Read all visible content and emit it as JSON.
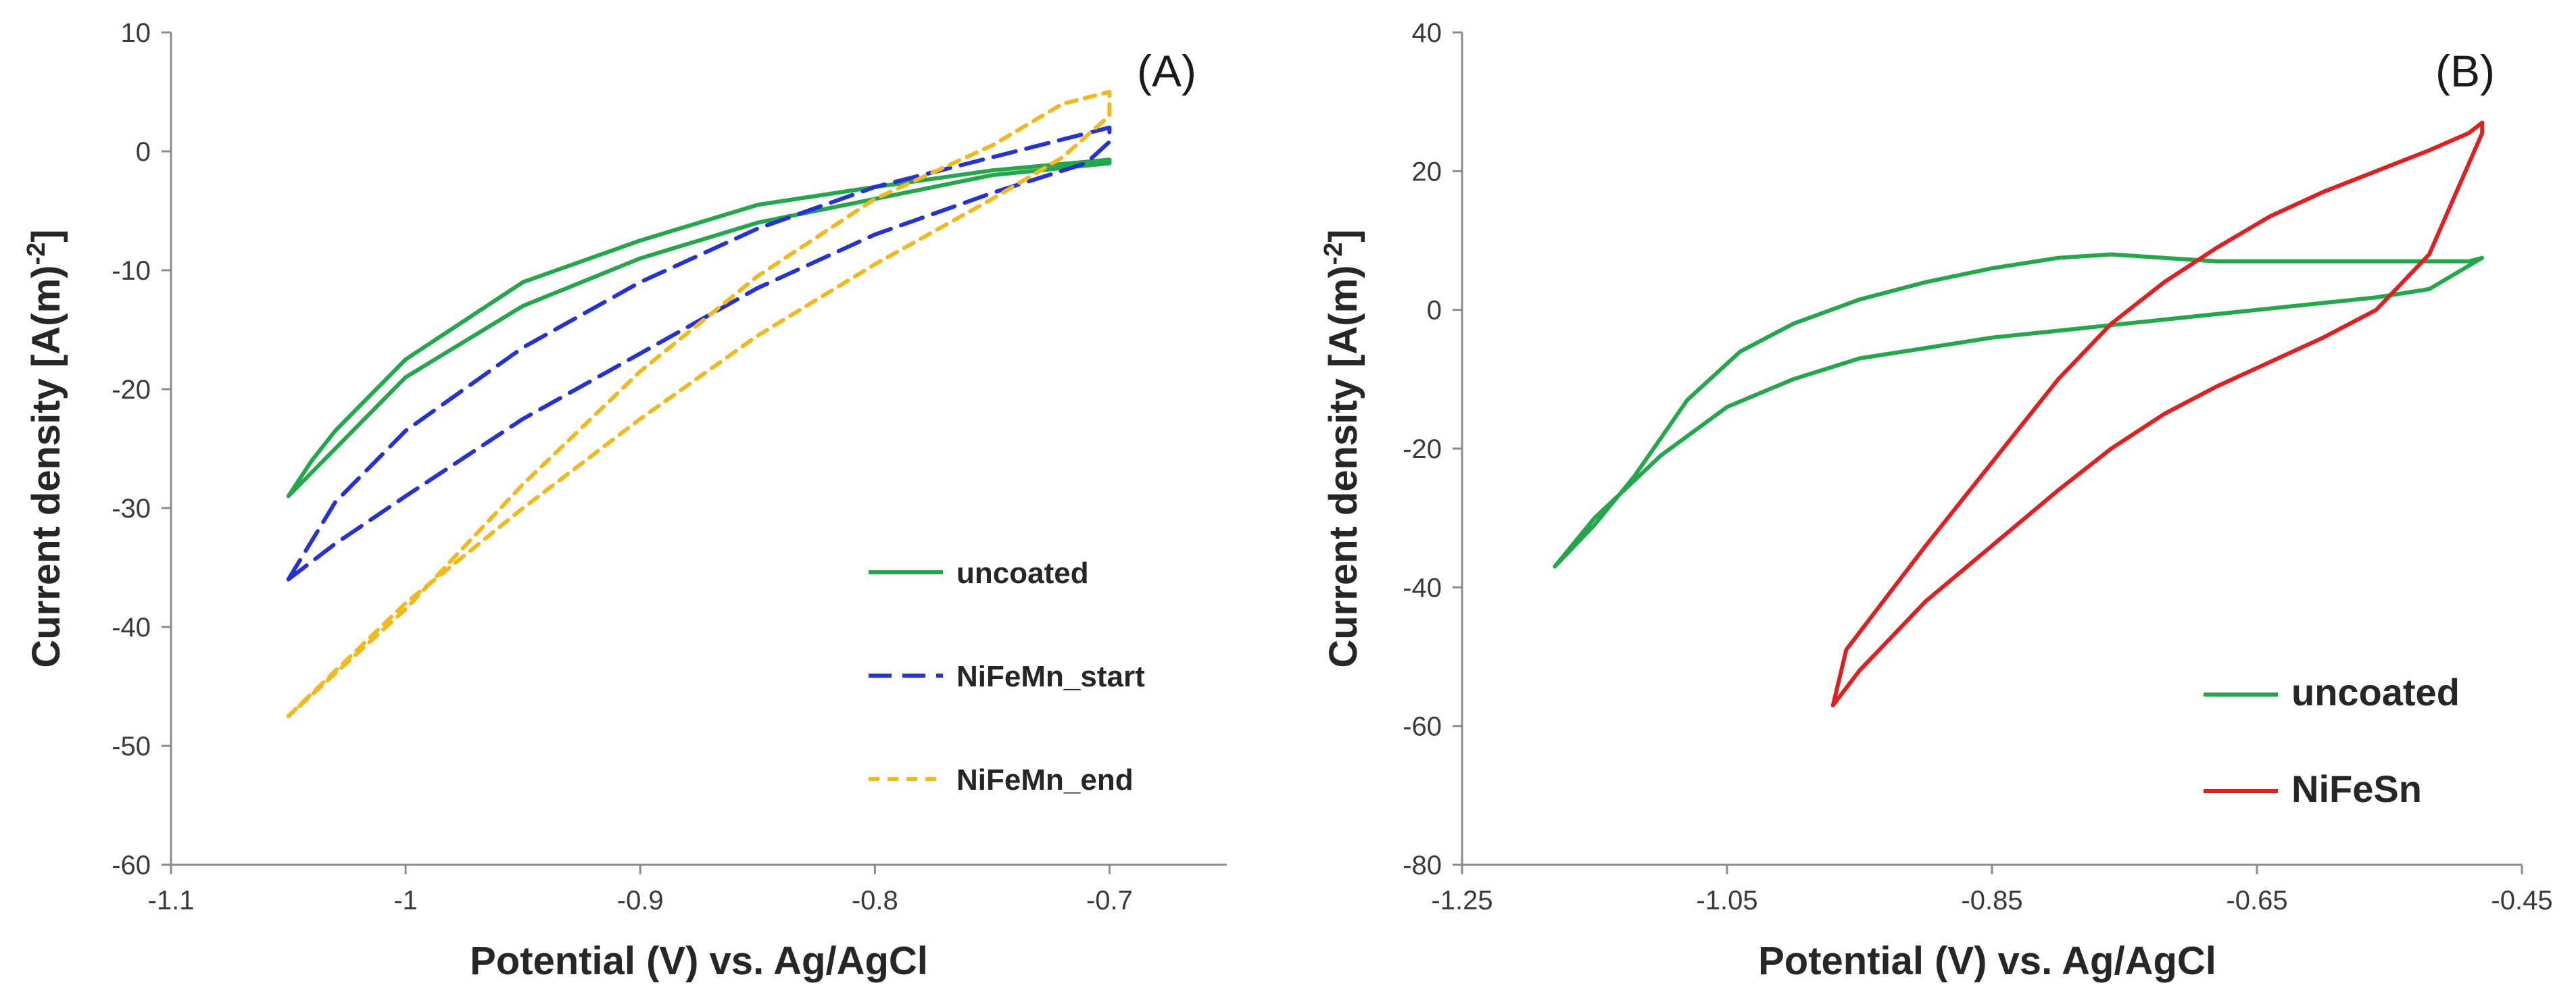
{
  "chart_data": [
    {
      "type": "line",
      "panel_label": "(A)",
      "xlabel": "Potential (V) vs. Ag/AgCl",
      "ylabel": "Current density [A(m)",
      "ylabel_superscript": "-2",
      "ylabel_close": "]",
      "xlim": [
        -1.1,
        -0.65
      ],
      "ylim": [
        -60,
        10
      ],
      "xticks": [
        -1.1,
        -1,
        -0.9,
        -0.8,
        -0.7
      ],
      "xtick_labels": [
        "-1.1",
        "-1",
        "-0.9",
        "-0.8",
        "-0.7"
      ],
      "yticks": [
        -60,
        -50,
        -40,
        -30,
        -20,
        -10,
        0,
        10
      ],
      "ytick_labels": [
        "-60",
        "-50",
        "-40",
        "-30",
        "-20",
        "-10",
        "0",
        "10"
      ],
      "grid": false,
      "legend_position": "lower-right",
      "series": [
        {
          "name": "uncoated",
          "color": "#22a84a",
          "style": "solid",
          "x": [
            -1.05,
            -1.04,
            -1.03,
            -1.0,
            -0.95,
            -0.9,
            -0.85,
            -0.8,
            -0.75,
            -0.7,
            -0.7,
            -0.75,
            -0.8,
            -0.85,
            -0.9,
            -0.95,
            -1.0,
            -1.03,
            -1.04,
            -1.05
          ],
          "y": [
            -29,
            -27,
            -25,
            -19,
            -13,
            -9,
            -6,
            -4,
            -2,
            -1,
            -0.7,
            -1.6,
            -3,
            -4.5,
            -7.5,
            -11,
            -17.5,
            -23.5,
            -26,
            -29
          ]
        },
        {
          "name": "NiFeMn_start",
          "color": "#2431d6",
          "style": "dashed",
          "x": [
            -1.05,
            -1.03,
            -1.0,
            -0.95,
            -0.9,
            -0.85,
            -0.8,
            -0.75,
            -0.71,
            -0.7,
            -0.7,
            -0.75,
            -0.8,
            -0.85,
            -0.9,
            -0.95,
            -1.0,
            -1.03,
            -1.05
          ],
          "y": [
            -36,
            -33,
            -29,
            -22.5,
            -17,
            -11.5,
            -7,
            -3.5,
            -1,
            0.8,
            2,
            -0.5,
            -3,
            -6.5,
            -11,
            -16.5,
            -23.5,
            -29.5,
            -36
          ]
        },
        {
          "name": "NiFeMn_end",
          "color": "#f2b81c",
          "style": "dotted-dash",
          "x": [
            -1.05,
            -1.0,
            -0.95,
            -0.9,
            -0.85,
            -0.8,
            -0.75,
            -0.72,
            -0.7,
            -0.7,
            -0.72,
            -0.75,
            -0.8,
            -0.85,
            -0.9,
            -0.95,
            -1.0,
            -1.05
          ],
          "y": [
            -47.5,
            -38,
            -30,
            -22.5,
            -15.5,
            -9.5,
            -4,
            -0.5,
            3,
            5,
            4,
            0.5,
            -4,
            -10.5,
            -18.5,
            -28,
            -38.5,
            -47.5
          ]
        }
      ]
    },
    {
      "type": "line",
      "panel_label": "(B)",
      "xlabel": "Potential (V) vs. Ag/AgCl",
      "ylabel": "Current density [A(m)",
      "ylabel_superscript": "-2",
      "ylabel_close": "]",
      "xlim": [
        -1.25,
        -0.45
      ],
      "ylim": [
        -80,
        40
      ],
      "xticks": [
        -1.25,
        -1.05,
        -0.85,
        -0.65,
        -0.45
      ],
      "xtick_labels": [
        "-1.25",
        "-1.05",
        "-0.85",
        "-0.65",
        "-0.45"
      ],
      "yticks": [
        -80,
        -60,
        -40,
        -20,
        0,
        20,
        40
      ],
      "ytick_labels": [
        "-80",
        "-60",
        "-40",
        "-20",
        "0",
        "20",
        "40"
      ],
      "grid": false,
      "legend_position": "lower-right",
      "series": [
        {
          "name": "uncoated",
          "color": "#22a84a",
          "style": "solid",
          "x": [
            -1.18,
            -1.15,
            -1.12,
            -1.08,
            -1.04,
            -1.0,
            -0.95,
            -0.9,
            -0.85,
            -0.8,
            -0.76,
            -0.72,
            -0.68,
            -0.64,
            -0.6,
            -0.56,
            -0.52,
            -0.49,
            -0.48,
            -0.52,
            -0.56,
            -0.6,
            -0.65,
            -0.7,
            -0.75,
            -0.8,
            -0.85,
            -0.9,
            -0.95,
            -1.0,
            -1.05,
            -1.1,
            -1.15,
            -1.18
          ],
          "y": [
            -37,
            -31,
            -24,
            -13,
            -6,
            -2,
            1.5,
            4,
            6,
            7.5,
            8,
            7.5,
            7,
            7,
            7,
            7,
            7,
            7,
            7.5,
            3,
            1.8,
            1,
            0,
            -1,
            -2,
            -3,
            -4,
            -5.5,
            -7,
            -10,
            -14,
            -21,
            -30,
            -37
          ]
        },
        {
          "name": "NiFeSn",
          "color": "#e31e1e",
          "style": "solid",
          "x": [
            -0.97,
            -0.96,
            -0.9,
            -0.85,
            -0.8,
            -0.76,
            -0.72,
            -0.68,
            -0.64,
            -0.6,
            -0.56,
            -0.52,
            -0.49,
            -0.48,
            -0.48,
            -0.52,
            -0.56,
            -0.6,
            -0.64,
            -0.68,
            -0.72,
            -0.76,
            -0.8,
            -0.85,
            -0.9,
            -0.95,
            -0.97
          ],
          "y": [
            -57,
            -49,
            -34,
            -22,
            -10,
            -2,
            4,
            9,
            13.5,
            17,
            20,
            23,
            25.5,
            27,
            25.5,
            8,
            0,
            -4,
            -7.5,
            -11,
            -15,
            -20,
            -26,
            -34,
            -42,
            -52,
            -57
          ]
        }
      ]
    }
  ]
}
